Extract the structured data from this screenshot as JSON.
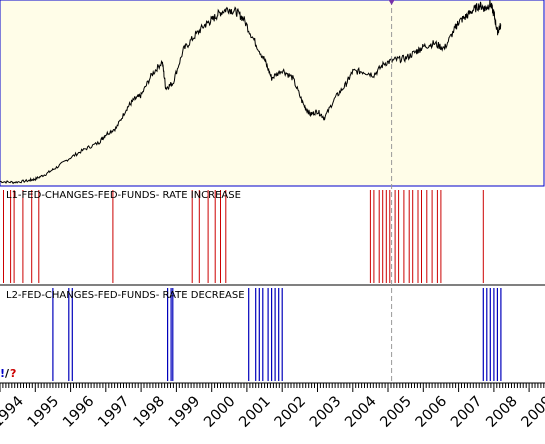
{
  "colors": {
    "price_bg": "#fffde8",
    "price_border": "#0000cc",
    "price_line": "#000000",
    "increase_bar": "#cc0000",
    "decrease_bar": "#0000bb",
    "cursor_line": "#999999",
    "panel_divider": "#000000"
  },
  "panels": {
    "increase_label": "L1-FED-CHANGES-FED-FUNDS- RATE INCREASE",
    "decrease_label": "L2-FED-CHANGES-FED-FUNDS- RATE DECREASE"
  },
  "markers": {
    "exclaim": "!",
    "slash": "/",
    "question": "?"
  },
  "chart_data": {
    "type": "line",
    "xlim": [
      1994.0,
      2009.45
    ],
    "x_tick_labels": [
      "1994",
      "1995",
      "1996",
      "1997",
      "1998",
      "1999",
      "2000",
      "2001",
      "2002",
      "2003",
      "2004",
      "2005",
      "2006",
      "2007",
      "2008",
      "2009"
    ],
    "x_ticks": [
      1994,
      1995,
      1996,
      1997,
      1998,
      1999,
      2000,
      2001,
      2002,
      2003,
      2004,
      2005,
      2006,
      2007,
      2008,
      2009
    ],
    "cursor_x": 2005.1,
    "price_series": {
      "x": [
        1994.0,
        1994.4,
        1994.8,
        1995.0,
        1995.3,
        1995.6,
        1996.0,
        1996.4,
        1996.8,
        1997.0,
        1997.3,
        1997.6,
        1997.8,
        1998.0,
        1998.3,
        1998.6,
        1998.7,
        1998.9,
        1999.2,
        1999.5,
        1999.8,
        2000.0,
        2000.2,
        2000.45,
        2000.7,
        2000.9,
        2001.2,
        2001.5,
        2001.7,
        2002.0,
        2002.3,
        2002.6,
        2002.8,
        2003.0,
        2003.2,
        2003.5,
        2003.8,
        2004.0,
        2004.3,
        2004.6,
        2004.9,
        2005.2,
        2005.5,
        2005.8,
        2006.0,
        2006.3,
        2006.6,
        2006.9,
        2007.0,
        2007.2,
        2007.4,
        2007.6,
        2007.75,
        2007.9,
        2008.0,
        2008.1,
        2008.2
      ],
      "y": [
        455,
        450,
        460,
        470,
        500,
        540,
        600,
        650,
        690,
        740,
        780,
        900,
        950,
        975,
        1100,
        1180,
        1020,
        1050,
        1250,
        1330,
        1400,
        1430,
        1470,
        1500,
        1480,
        1440,
        1310,
        1190,
        1080,
        1130,
        1080,
        920,
        860,
        880,
        840,
        960,
        1040,
        1120,
        1120,
        1100,
        1170,
        1190,
        1200,
        1240,
        1270,
        1290,
        1260,
        1380,
        1420,
        1450,
        1490,
        1520,
        1500,
        1530,
        1470,
        1360,
        1400
      ],
      "ylim": [
        440,
        1540
      ]
    },
    "rate_increases": [
      1994.1,
      1994.3,
      1994.4,
      1994.65,
      1994.9,
      1995.1,
      1997.2,
      1999.45,
      1999.65,
      1999.9,
      2000.1,
      2000.25,
      2000.4,
      2004.5,
      2004.6,
      2004.75,
      2004.85,
      2004.95,
      2005.05,
      2005.2,
      2005.3,
      2005.45,
      2005.6,
      2005.7,
      2005.85,
      2005.95,
      2006.1,
      2006.25,
      2006.4,
      2006.5,
      2007.7
    ],
    "rate_decreases": [
      1995.5,
      1995.95,
      1996.05,
      1998.75,
      1998.85,
      1998.9,
      2001.05,
      2001.25,
      2001.35,
      2001.45,
      2001.6,
      2001.7,
      2001.8,
      2001.9,
      2002.0,
      2007.7,
      2007.8,
      2007.9,
      2008.0,
      2008.1,
      2008.2
    ]
  }
}
